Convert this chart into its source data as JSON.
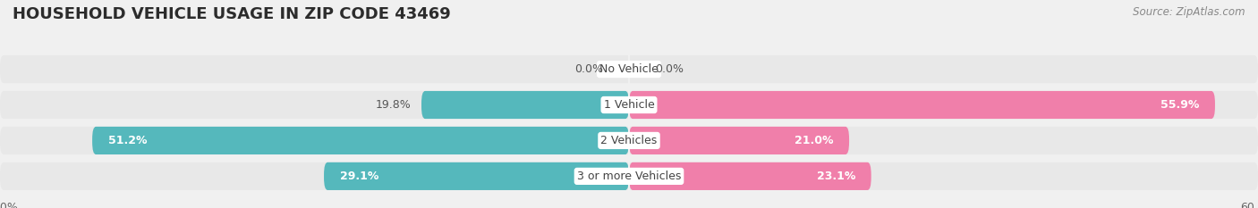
{
  "title": "HOUSEHOLD VEHICLE USAGE IN ZIP CODE 43469",
  "source": "Source: ZipAtlas.com",
  "categories": [
    "No Vehicle",
    "1 Vehicle",
    "2 Vehicles",
    "3 or more Vehicles"
  ],
  "owner_values": [
    0.0,
    19.8,
    51.2,
    29.1
  ],
  "renter_values": [
    0.0,
    55.9,
    21.0,
    23.1
  ],
  "owner_color": "#55b8bc",
  "renter_color": "#f07faa",
  "axis_max": 60.0,
  "background_color": "#f0f0f0",
  "bar_bg_color": "#e0e0e0",
  "row_bg_color": "#e8e8e8",
  "white_sep_color": "#f0f0f0",
  "title_fontsize": 13,
  "source_fontsize": 8.5,
  "label_fontsize": 9,
  "category_fontsize": 9,
  "legend_fontsize": 9
}
